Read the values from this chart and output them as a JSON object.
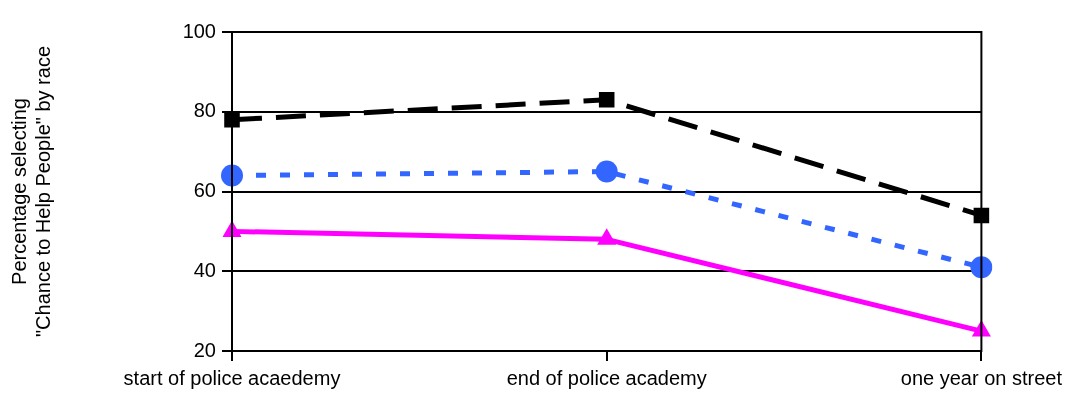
{
  "chart_data": {
    "type": "line",
    "ylabel": "Percentage selecting\n\"Chance to Help People\" by race",
    "categories": [
      "start of police acaedemy",
      "end of police academy",
      "one year on street"
    ],
    "series": [
      {
        "color": "#000000",
        "values": [
          78,
          83,
          54
        ],
        "marker": "square",
        "line_style": "dashed"
      },
      {
        "color": "#3366ff",
        "values": [
          64,
          65,
          41
        ],
        "marker": "circle",
        "line_style": "dotted"
      },
      {
        "color": "#ff00ff",
        "values": [
          50,
          48,
          25
        ],
        "marker": "triangle",
        "line_style": "solid"
      }
    ],
    "ylim": [
      20,
      100
    ],
    "yticks": [
      20,
      40,
      60,
      80,
      100
    ],
    "grid": "y",
    "legend": false
  }
}
